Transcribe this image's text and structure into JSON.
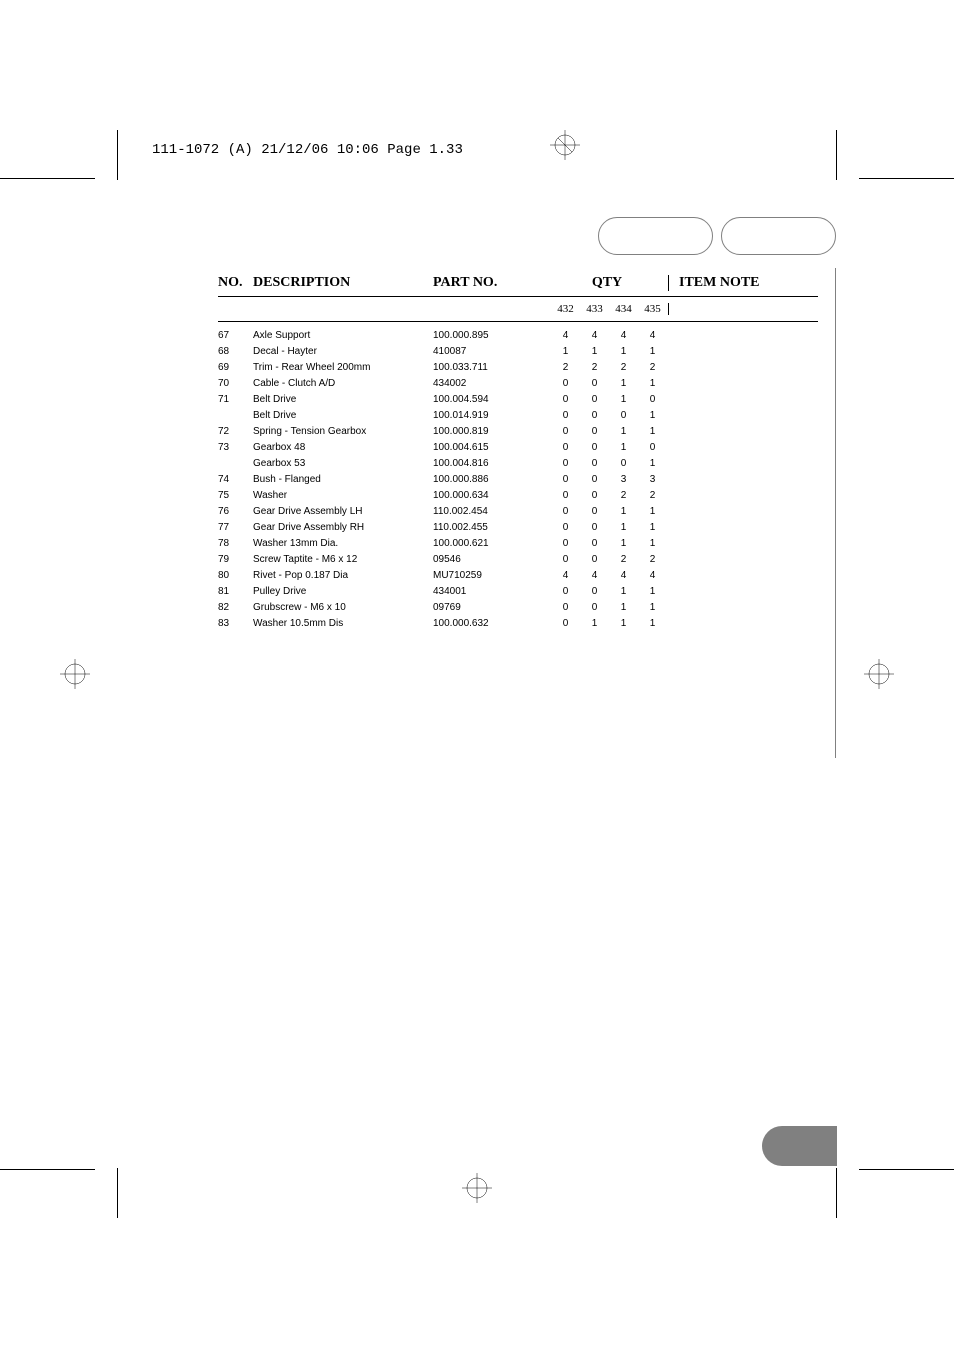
{
  "header": {
    "text": "111-1072 (A)  21/12/06  10:06  Page 1.33"
  },
  "columns": {
    "no": "NO.",
    "description": "DESCRIPTION",
    "partno": "PART NO.",
    "qty": "QTY",
    "itemnote": "ITEM NOTE"
  },
  "subcolumns": [
    "432",
    "433",
    "434",
    "435"
  ],
  "rows": [
    {
      "no": "67",
      "desc": "Axle Support",
      "part": "100.000.895",
      "q": [
        "4",
        "4",
        "4",
        "4"
      ]
    },
    {
      "no": "68",
      "desc": "Decal - Hayter",
      "part": "410087",
      "q": [
        "1",
        "1",
        "1",
        "1"
      ]
    },
    {
      "no": "69",
      "desc": "Trim - Rear Wheel 200mm",
      "part": "100.033.711",
      "q": [
        "2",
        "2",
        "2",
        "2"
      ]
    },
    {
      "no": "70",
      "desc": "Cable - Clutch A/D",
      "part": "434002",
      "q": [
        "0",
        "0",
        "1",
        "1"
      ]
    },
    {
      "no": "71",
      "desc": "Belt Drive",
      "part": "100.004.594",
      "q": [
        "0",
        "0",
        "1",
        "0"
      ]
    },
    {
      "no": "",
      "desc": "Belt Drive",
      "part": "100.014.919",
      "q": [
        "0",
        "0",
        "0",
        "1"
      ]
    },
    {
      "no": "72",
      "desc": "Spring - Tension Gearbox",
      "part": "100.000.819",
      "q": [
        "0",
        "0",
        "1",
        "1"
      ]
    },
    {
      "no": "73",
      "desc": "Gearbox 48",
      "part": "100.004.615",
      "q": [
        "0",
        "0",
        "1",
        "0"
      ]
    },
    {
      "no": "",
      "desc": "Gearbox 53",
      "part": "100.004.816",
      "q": [
        "0",
        "0",
        "0",
        "1"
      ]
    },
    {
      "no": "74",
      "desc": "Bush - Flanged",
      "part": "100.000.886",
      "q": [
        "0",
        "0",
        "3",
        "3"
      ]
    },
    {
      "no": "75",
      "desc": "Washer",
      "part": "100.000.634",
      "q": [
        "0",
        "0",
        "2",
        "2"
      ]
    },
    {
      "no": "76",
      "desc": "Gear Drive Assembly LH",
      "part": "110.002.454",
      "q": [
        "0",
        "0",
        "1",
        "1"
      ]
    },
    {
      "no": "77",
      "desc": "Gear Drive Assembly RH",
      "part": "110.002.455",
      "q": [
        "0",
        "0",
        "1",
        "1"
      ]
    },
    {
      "no": "78",
      "desc": "Washer 13mm Dia.",
      "part": "100.000.621",
      "q": [
        "0",
        "0",
        "1",
        "1"
      ]
    },
    {
      "no": "79",
      "desc": "Screw Taptite - M6 x 12",
      "part": "09546",
      "q": [
        "0",
        "0",
        "2",
        "2"
      ]
    },
    {
      "no": "80",
      "desc": "Rivet - Pop 0.187 Dia",
      "part": "MU710259",
      "q": [
        "4",
        "4",
        "4",
        "4"
      ]
    },
    {
      "no": "81",
      "desc": "Pulley Drive",
      "part": "434001",
      "q": [
        "0",
        "0",
        "1",
        "1"
      ]
    },
    {
      "no": "82",
      "desc": "Grubscrew - M6 x 10",
      "part": "09769",
      "q": [
        "0",
        "0",
        "1",
        "1"
      ]
    },
    {
      "no": "83",
      "desc": "Washer 10.5mm Dis",
      "part": "100.000.632",
      "q": [
        "0",
        "1",
        "1",
        "1"
      ]
    }
  ]
}
